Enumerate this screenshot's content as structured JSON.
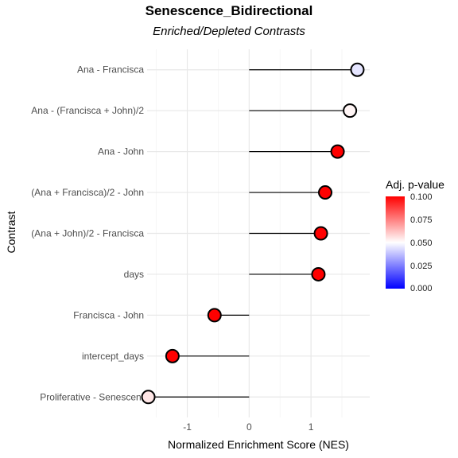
{
  "chart_data": {
    "type": "lollipop",
    "title": "Senescence_Bidirectional",
    "subtitle": "Enriched/Depleted Contrasts",
    "xlabel": "Normalized Enrichment Score (NES)",
    "ylabel": "Contrast",
    "xlim": [
      -1.65,
      1.95
    ],
    "xticks": [
      -1,
      0,
      1
    ],
    "xtick_labels": [
      "-1",
      "0",
      "1"
    ],
    "grid": true,
    "categories": [
      "Ana - Francisca",
      "Ana - (Francisca + John)/2",
      "Ana - John",
      "(Ana + Francisca)/2 - John",
      "(Ana + John)/2 - Francisca",
      "days",
      "Francisca - John",
      "intercept_days",
      "Proliferative - Senescent"
    ],
    "values": [
      1.75,
      1.63,
      1.43,
      1.23,
      1.16,
      1.12,
      -0.56,
      -1.24,
      -1.63
    ],
    "padj": [
      0.045,
      0.052,
      0.1,
      0.1,
      0.1,
      0.1,
      0.1,
      0.1,
      0.055
    ],
    "legend": {
      "title": "Adj. p-value",
      "position": "right",
      "ticks": [
        "0.100",
        "0.075",
        "0.050",
        "0.025",
        "0.000"
      ],
      "tick_values": [
        0.1,
        0.075,
        0.05,
        0.025,
        0.0
      ],
      "colors": {
        "low": "#0000ff",
        "mid": "#ffffff",
        "high": "#ff0000"
      }
    }
  }
}
